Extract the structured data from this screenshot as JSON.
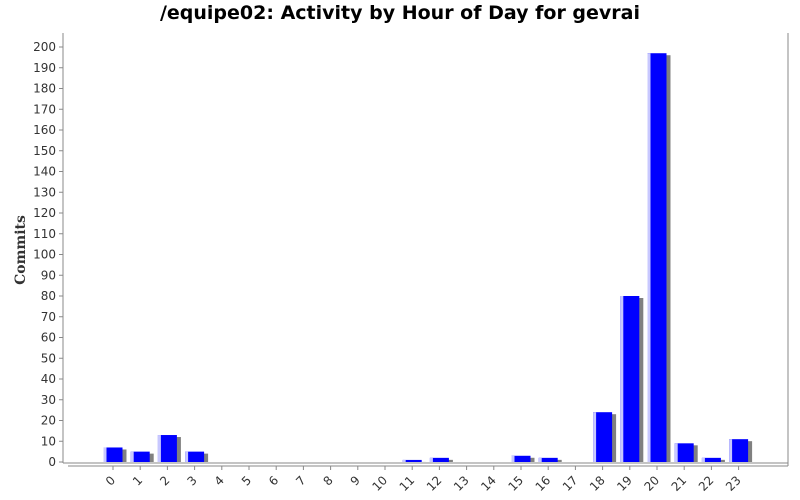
{
  "chart_data": {
    "type": "bar",
    "title": "/equipe02: Activity by Hour of Day for gevrai",
    "xlabel": "",
    "ylabel": "Commits",
    "categories": [
      "0",
      "1",
      "2",
      "3",
      "4",
      "5",
      "6",
      "7",
      "8",
      "9",
      "10",
      "11",
      "12",
      "13",
      "14",
      "15",
      "16",
      "17",
      "18",
      "19",
      "20",
      "21",
      "22",
      "23"
    ],
    "values": [
      7,
      5,
      13,
      5,
      0,
      0,
      0,
      0,
      0,
      0,
      0,
      1,
      2,
      0,
      0,
      3,
      2,
      0,
      24,
      80,
      197,
      9,
      2,
      11
    ],
    "ylim": [
      0,
      200
    ],
    "yticks": [
      0,
      10,
      20,
      30,
      40,
      50,
      60,
      70,
      80,
      90,
      100,
      110,
      120,
      130,
      140,
      150,
      160,
      170,
      180,
      190,
      200
    ],
    "grid": false,
    "legend": "none",
    "colors": {
      "bar": "#0000ff",
      "bar_highlight": "#c8c8ff",
      "shadow": "#808080",
      "axis": "#888888"
    }
  }
}
